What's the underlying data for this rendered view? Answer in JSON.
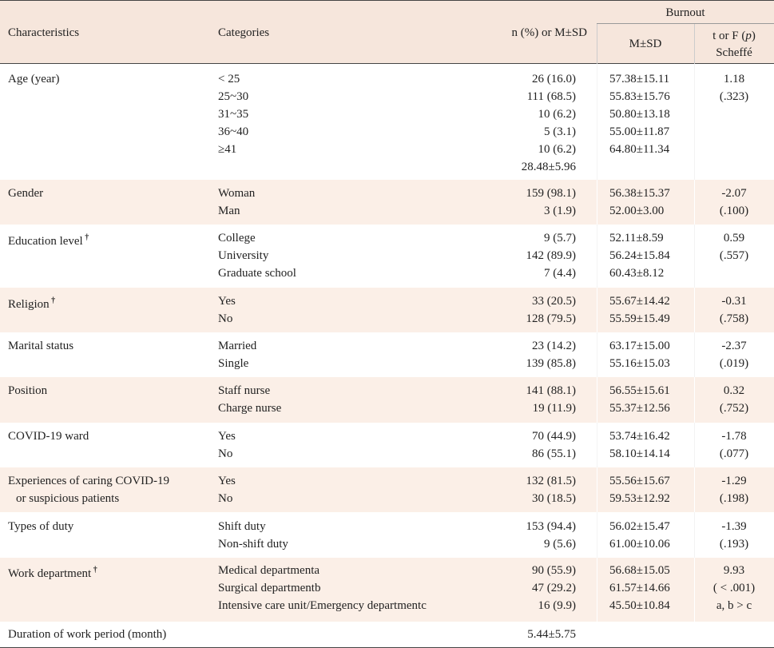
{
  "header": {
    "characteristics": "Characteristics",
    "categories": "Categories",
    "n_col": "n (%) or M±SD",
    "burnout": "Burnout",
    "msd": "M±SD",
    "t_col_a": "t or F (",
    "t_col_p": "p",
    "t_col_b": ")",
    "scheffe": "Scheffé"
  },
  "rows": [
    {
      "char": "Age (year)",
      "char2": "",
      "dagger": "",
      "cats": [
        "< 25",
        "25~30",
        "31~35",
        "36~40",
        "≥41",
        ""
      ],
      "ns": [
        "26 (16.0)",
        "111 (68.5)",
        "10 (6.2)",
        "5 (3.1)",
        "10 (6.2)",
        "28.48±5.96"
      ],
      "msds": [
        "57.38±15.11",
        "55.83±15.76",
        "50.80±13.18",
        "55.00±11.87",
        "64.80±11.34",
        ""
      ],
      "ts": [
        "1.18",
        "(.323)",
        "",
        "",
        "",
        ""
      ]
    },
    {
      "char": "Gender",
      "char2": "",
      "dagger": "",
      "cats": [
        "Woman",
        "Man"
      ],
      "ns": [
        "159 (98.1)",
        "3 (1.9)"
      ],
      "msds": [
        "56.38±15.37",
        "52.00±3.00"
      ],
      "ts": [
        "-2.07",
        "(.100)"
      ]
    },
    {
      "char": "Education level",
      "char2": "",
      "dagger": "†",
      "cats": [
        "College",
        "University",
        "Graduate school"
      ],
      "ns": [
        "9 (5.7)",
        "142 (89.9)",
        "7 (4.4)"
      ],
      "msds": [
        "52.11±8.59",
        "56.24±15.84",
        "60.43±8.12"
      ],
      "ts": [
        "0.59",
        "(.557)",
        ""
      ]
    },
    {
      "char": "Religion",
      "char2": "",
      "dagger": "†",
      "cats": [
        "Yes",
        "No"
      ],
      "ns": [
        "33 (20.5)",
        "128 (79.5)"
      ],
      "msds": [
        "55.67±14.42",
        "55.59±15.49"
      ],
      "ts": [
        "-0.31",
        "(.758)"
      ]
    },
    {
      "char": "Marital status",
      "char2": "",
      "dagger": "",
      "cats": [
        "Married",
        "Single"
      ],
      "ns": [
        "23 (14.2)",
        "139 (85.8)"
      ],
      "msds": [
        "63.17±15.00",
        "55.16±15.03"
      ],
      "ts": [
        "-2.37",
        "(.019)"
      ]
    },
    {
      "char": "Position",
      "char2": "",
      "dagger": "",
      "cats": [
        "Staff nurse",
        "Charge nurse"
      ],
      "ns": [
        "141 (88.1)",
        "19 (11.9)"
      ],
      "msds": [
        "56.55±15.61",
        "55.37±12.56"
      ],
      "ts": [
        "0.32",
        "(.752)"
      ]
    },
    {
      "char": "COVID-19 ward",
      "char2": "",
      "dagger": "",
      "cats": [
        "Yes",
        "No"
      ],
      "ns": [
        "70 (44.9)",
        "86 (55.1)"
      ],
      "msds": [
        "53.74±16.42",
        "58.10±14.14"
      ],
      "ts": [
        "-1.78",
        "(.077)"
      ]
    },
    {
      "char": "Experiences of caring COVID-19",
      "char2": "or suspicious patients",
      "dagger": "",
      "cats": [
        "Yes",
        "No"
      ],
      "ns": [
        "132 (81.5)",
        "30 (18.5)"
      ],
      "msds": [
        "55.56±15.67",
        "59.53±12.92"
      ],
      "ts": [
        "-1.29",
        "(.198)"
      ]
    },
    {
      "char": "Types of duty",
      "char2": "",
      "dagger": "",
      "cats": [
        "Shift duty",
        "Non-shift duty"
      ],
      "ns": [
        "153 (94.4)",
        "9 (5.6)"
      ],
      "msds": [
        "56.02±15.47",
        "61.00±10.06"
      ],
      "ts": [
        "-1.39",
        "(.193)"
      ]
    },
    {
      "char": "Work department",
      "char2": "",
      "dagger": "†",
      "cats": [
        "Medical departmenta",
        "Surgical departmentb",
        "Intensive care unit/Emergency departmentc"
      ],
      "ns": [
        "90 (55.9)",
        "47 (29.2)",
        "16 (9.9)"
      ],
      "msds": [
        "56.68±15.05",
        "61.57±14.66",
        "45.50±10.84"
      ],
      "ts": [
        "9.93",
        "( < .001)",
        "a, b > c"
      ]
    },
    {
      "char": "Duration of work period (month)",
      "char2": "",
      "dagger": "",
      "cats": [
        ""
      ],
      "ns": [
        "5.44±5.75"
      ],
      "msds": [
        ""
      ],
      "ts": [
        ""
      ]
    }
  ]
}
